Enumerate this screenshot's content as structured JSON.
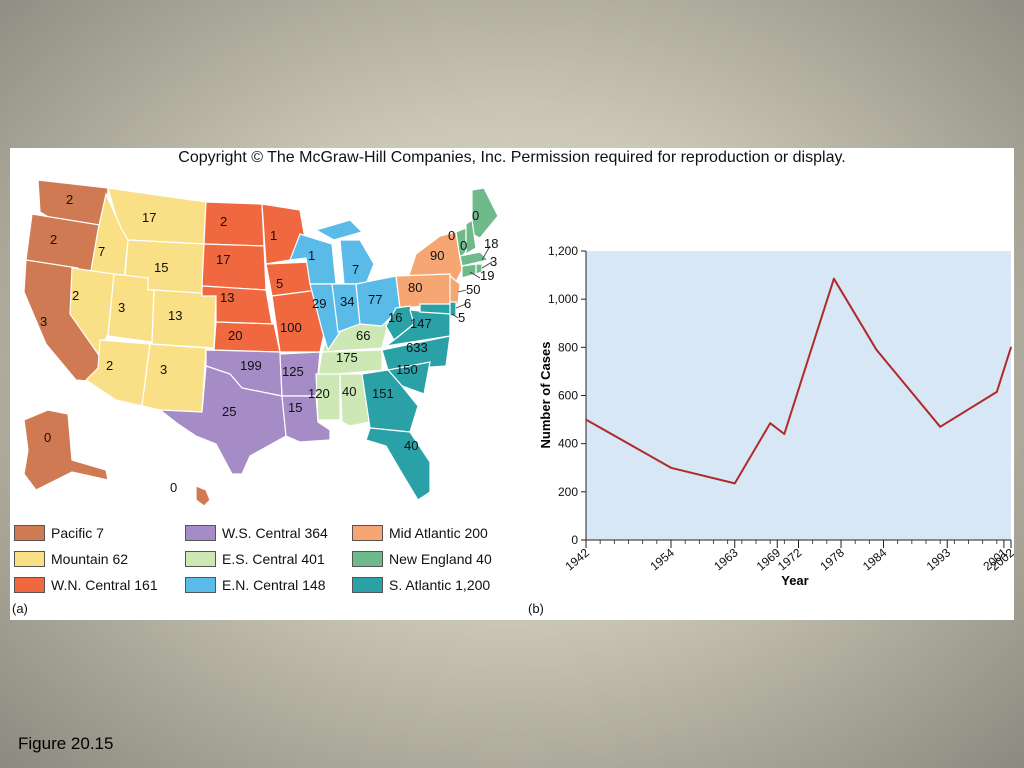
{
  "copyright": "Copyright © The McGraw-Hill Companies, Inc. Permission required for reproduction or display.",
  "caption": "Figure 20.15",
  "panel_a_label": "(a)",
  "panel_b_label": "(b)",
  "map": {
    "region_colors": {
      "pacific": "#cf7a52",
      "mountain": "#f9df86",
      "wn_central": "#f0683f",
      "ws_central": "#a58cc6",
      "es_central": "#cde8b5",
      "en_central": "#5bbbe8",
      "mid_atlantic": "#f5a673",
      "new_england": "#6fba8b",
      "s_atlantic": "#2aa1a7"
    },
    "numbers": {
      "WA": "2",
      "OR": "2",
      "CA": "3",
      "AK": "0",
      "HI": "0",
      "MT": "17",
      "ID": "7",
      "WY": "15",
      "NV": "2",
      "UT": "3",
      "CO": "13",
      "AZ": "2",
      "NM": "3",
      "ND": "2",
      "SD": "17",
      "NE": "13",
      "KS": "20",
      "MN": "1",
      "IA": "5",
      "MO": "100",
      "OK": "199",
      "TX": "25",
      "AR": "125",
      "LA": "15",
      "KY": "66",
      "TN": "175",
      "MS": "120",
      "AL": "40",
      "WI": "1",
      "MI": "7",
      "IL": "29",
      "IN": "34",
      "OH": "77",
      "NY": "90",
      "PA": "80",
      "NJ": "50",
      "ME": "0",
      "VT": "0",
      "NH": "0",
      "MA": "18",
      "RI": "3",
      "CT": "19",
      "WV": "16",
      "VA": "147",
      "NC": "633",
      "SC": "150",
      "GA": "151",
      "FL": "40",
      "DE": "6",
      "MD": "5"
    }
  },
  "legend": [
    {
      "label": "Pacific 7",
      "color": "#cf7a52"
    },
    {
      "label": "Mountain 62",
      "color": "#f9df86"
    },
    {
      "label": "W.N. Central 161",
      "color": "#f0683f"
    },
    {
      "label": "W.S. Central 364",
      "color": "#a58cc6"
    },
    {
      "label": "E.S. Central 401",
      "color": "#cde8b5"
    },
    {
      "label": "E.N. Central 148",
      "color": "#5bbbe8"
    },
    {
      "label": "Mid Atlantic 200",
      "color": "#f5a673"
    },
    {
      "label": "New England 40",
      "color": "#6fba8b"
    },
    {
      "label": "S. Atlantic 1,200",
      "color": "#2aa1a7"
    }
  ],
  "chart_data": {
    "type": "line",
    "title": "",
    "xlabel": "Year",
    "ylabel": "Number of Cases",
    "x_ticks": [
      "1942",
      "1954",
      "1963",
      "1969",
      "1972",
      "1978",
      "1984",
      "1993",
      "2001",
      "2002"
    ],
    "y_ticks": [
      "0",
      "200",
      "400",
      "600",
      "800",
      "1,000",
      "1,200"
    ],
    "xlim": [
      1942,
      2002
    ],
    "ylim": [
      0,
      1200
    ],
    "grid": false,
    "plot_background": "#d7e7f5",
    "line_color": "#b02a2a",
    "series": [
      {
        "x": [
          1942,
          1954,
          1963,
          1968,
          1970,
          1977,
          1983,
          1992,
          2000,
          2002
        ],
        "y": [
          500,
          300,
          235,
          485,
          440,
          1085,
          790,
          470,
          615,
          800
        ]
      }
    ]
  }
}
